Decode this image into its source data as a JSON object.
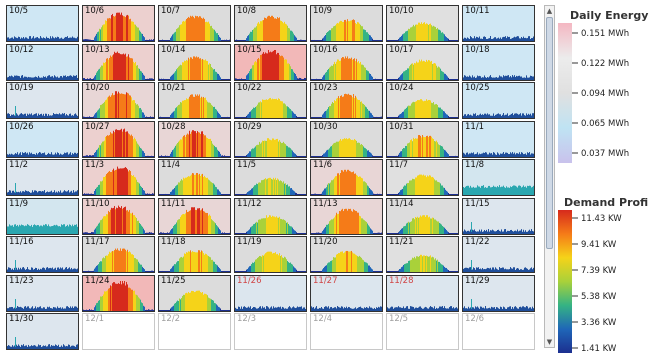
{
  "calendar": {
    "cells": [
      {
        "label": "10/5",
        "state": "light"
      },
      {
        "label": "10/6",
        "state": "solar",
        "peak": 0.95,
        "bg": "#ecd0cf"
      },
      {
        "label": "10/7",
        "state": "solar",
        "peak": 0.85,
        "bg": "#dcdcdc"
      },
      {
        "label": "10/8",
        "state": "solar",
        "peak": 0.85,
        "bg": "#dcdcdc"
      },
      {
        "label": "10/9",
        "state": "solar",
        "peak": 0.75,
        "bg": "#dcdcdc"
      },
      {
        "label": "10/10",
        "state": "solar",
        "peak": 0.65,
        "bg": "#e0e0e0"
      },
      {
        "label": "10/11",
        "state": "light"
      },
      {
        "label": "10/12",
        "state": "light"
      },
      {
        "label": "10/13",
        "state": "solar",
        "peak": 0.95,
        "bg": "#ecd0cf"
      },
      {
        "label": "10/14",
        "state": "solar",
        "peak": 0.8,
        "bg": "#dcdcdc"
      },
      {
        "label": "10/15",
        "state": "solar",
        "peak": 1.0,
        "bg": "#f2b8b8"
      },
      {
        "label": "10/16",
        "state": "solar",
        "peak": 0.8,
        "bg": "#dcdcdc"
      },
      {
        "label": "10/17",
        "state": "solar",
        "peak": 0.7,
        "bg": "#e0e0e0"
      },
      {
        "label": "10/18",
        "state": "light"
      },
      {
        "label": "10/19",
        "state": "light2"
      },
      {
        "label": "10/20",
        "state": "solar",
        "peak": 0.9,
        "bg": "#e8d6d6"
      },
      {
        "label": "10/21",
        "state": "solar",
        "peak": 0.8,
        "bg": "#dcdcdc"
      },
      {
        "label": "10/22",
        "state": "solar",
        "peak": 0.7,
        "bg": "#dcdcdc"
      },
      {
        "label": "10/23",
        "state": "solar",
        "peak": 0.82,
        "bg": "#dcdcdc"
      },
      {
        "label": "10/24",
        "state": "solar",
        "peak": 0.65,
        "bg": "#e0e0e0"
      },
      {
        "label": "10/25",
        "state": "light"
      },
      {
        "label": "10/26",
        "state": "light"
      },
      {
        "label": "10/27",
        "state": "solar",
        "peak": 0.95,
        "bg": "#ecd0cf"
      },
      {
        "label": "10/28",
        "state": "solar",
        "peak": 0.9,
        "bg": "#e8d6d6"
      },
      {
        "label": "10/29",
        "state": "solar",
        "peak": 0.65,
        "bg": "#dcdcdc"
      },
      {
        "label": "10/30",
        "state": "solar",
        "peak": 0.65,
        "bg": "#dcdcdc"
      },
      {
        "label": "10/31",
        "state": "solar",
        "peak": 0.75,
        "bg": "#dcdcdc"
      },
      {
        "label": "11/1",
        "state": "light"
      },
      {
        "label": "11/2",
        "state": "light2"
      },
      {
        "label": "11/3",
        "state": "solar",
        "peak": 0.95,
        "bg": "#ecd0cf"
      },
      {
        "label": "11/4",
        "state": "solar",
        "peak": 0.75,
        "bg": "#dcdcdc"
      },
      {
        "label": "11/5",
        "state": "solar",
        "peak": 0.6,
        "bg": "#dcdcdc"
      },
      {
        "label": "11/6",
        "state": "solar",
        "peak": 0.85,
        "bg": "#e8d6d6"
      },
      {
        "label": "11/7",
        "state": "solar",
        "peak": 0.7,
        "bg": "#e0e0e0"
      },
      {
        "label": "11/8",
        "state": "teal"
      },
      {
        "label": "11/9",
        "state": "teal"
      },
      {
        "label": "11/10",
        "state": "solar",
        "peak": 0.95,
        "bg": "#ecd0cf"
      },
      {
        "label": "11/11",
        "state": "solar",
        "peak": 0.9,
        "bg": "#e8d6d6"
      },
      {
        "label": "11/12",
        "state": "solar",
        "peak": 0.65,
        "bg": "#dcdcdc"
      },
      {
        "label": "11/13",
        "state": "solar",
        "peak": 0.85,
        "bg": "#e8d6d6"
      },
      {
        "label": "11/14",
        "state": "solar",
        "peak": 0.65,
        "bg": "#dcdcdc"
      },
      {
        "label": "11/15",
        "state": "light2"
      },
      {
        "label": "11/16",
        "state": "light2"
      },
      {
        "label": "11/17",
        "state": "solar",
        "peak": 0.8,
        "bg": "#dcdcdc"
      },
      {
        "label": "11/18",
        "state": "solar",
        "peak": 0.75,
        "bg": "#dcdcdc"
      },
      {
        "label": "11/19",
        "state": "solar",
        "peak": 0.7,
        "bg": "#dcdcdc"
      },
      {
        "label": "11/20",
        "state": "solar",
        "peak": 0.72,
        "bg": "#dcdcdc"
      },
      {
        "label": "11/21",
        "state": "solar",
        "peak": 0.6,
        "bg": "#e0e0e0"
      },
      {
        "label": "11/22",
        "state": "light2"
      },
      {
        "label": "11/23",
        "state": "light2"
      },
      {
        "label": "11/24",
        "state": "solar",
        "peak": 1.0,
        "bg": "#f2b8b8"
      },
      {
        "label": "11/25",
        "state": "solar",
        "peak": 0.7,
        "bg": "#dcdcdc"
      },
      {
        "label": "11/26",
        "state": "holiday"
      },
      {
        "label": "11/27",
        "state": "holiday"
      },
      {
        "label": "11/28",
        "state": "holiday"
      },
      {
        "label": "11/29",
        "state": "light2"
      },
      {
        "label": "11/30",
        "state": "light2"
      },
      {
        "label": "12/1",
        "state": "future"
      },
      {
        "label": "12/2",
        "state": "future"
      },
      {
        "label": "12/3",
        "state": "future"
      },
      {
        "label": "12/4",
        "state": "future"
      },
      {
        "label": "12/5",
        "state": "future"
      },
      {
        "label": "12/6",
        "state": "future"
      }
    ]
  },
  "legend": {
    "daily_energy": {
      "title": "Daily Energy",
      "labels": [
        "0.151 MWh",
        "0.122 MWh",
        "0.094 MWh",
        "0.065 MWh",
        "0.037 MWh"
      ],
      "colors": [
        "#f4b7c2",
        "#ececec",
        "#e0e0e0",
        "#bfe3f3",
        "#c9c2ec"
      ]
    },
    "demand_profile": {
      "title": "Demand Profile",
      "labels": [
        "11.43 KW",
        "9.41 KW",
        "7.39 KW",
        "5.38 KW",
        "3.36 KW",
        "1.41 KW"
      ],
      "colors": [
        "#d62a1c",
        "#f57b18",
        "#f5d319",
        "#a9d13a",
        "#35b384",
        "#1f66b8",
        "#1c2f8f"
      ]
    }
  },
  "scrollbar": {
    "up_glyph": "▲",
    "down_glyph": "▼"
  }
}
